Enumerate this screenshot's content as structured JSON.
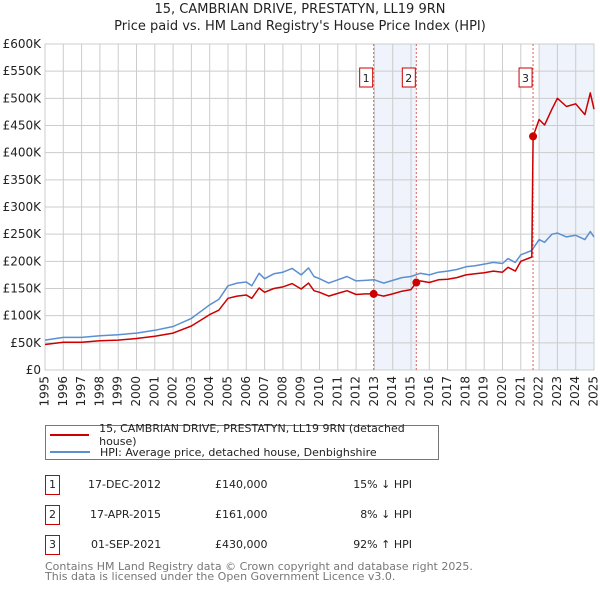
{
  "title_line1": "15, CAMBRIAN DRIVE, PRESTATYN, LL19 9RN",
  "title_line2": "Price paid vs. HM Land Registry's House Price Index (HPI)",
  "colors": {
    "property": "#cc0000",
    "hpi": "#5b8fd0",
    "shade": "#eef3fc",
    "grid": "#cccccc"
  },
  "chart_data": {
    "type": "line",
    "title": "15, CAMBRIAN DRIVE, PRESTATYN, LL19 9RN - Price paid vs. HM Land Registry's House Price Index (HPI)",
    "xlim": [
      1995,
      2025
    ],
    "ylim": [
      0,
      600000
    ],
    "x_ticks": [
      "1995",
      "1996",
      "1997",
      "1998",
      "1999",
      "2000",
      "2001",
      "2002",
      "2003",
      "2004",
      "2005",
      "2006",
      "2007",
      "2008",
      "2009",
      "2010",
      "2011",
      "2012",
      "2013",
      "2014",
      "2015",
      "2016",
      "2017",
      "2018",
      "2019",
      "2020",
      "2021",
      "2022",
      "2023",
      "2024",
      "2025"
    ],
    "y_ticks": [
      {
        "v": 0,
        "label": "£0"
      },
      {
        "v": 50000,
        "label": "£50K"
      },
      {
        "v": 100000,
        "label": "£100K"
      },
      {
        "v": 150000,
        "label": "£150K"
      },
      {
        "v": 200000,
        "label": "£200K"
      },
      {
        "v": 250000,
        "label": "£250K"
      },
      {
        "v": 300000,
        "label": "£300K"
      },
      {
        "v": 350000,
        "label": "£350K"
      },
      {
        "v": 400000,
        "label": "£400K"
      },
      {
        "v": 450000,
        "label": "£450K"
      },
      {
        "v": 500000,
        "label": "£500K"
      },
      {
        "v": 550000,
        "label": "£550K"
      },
      {
        "v": 600000,
        "label": "£600K"
      }
    ],
    "grid": true,
    "shaded_ranges": [
      [
        2012.96,
        2015.29
      ],
      [
        2022.0,
        2025
      ]
    ],
    "series": [
      {
        "name": "15, CAMBRIAN DRIVE, PRESTATYN, LL19 9RN (detached house)",
        "key": "property",
        "x": [
          1995,
          1996,
          1997,
          1998,
          1999,
          2000,
          2001,
          2002,
          2003,
          2004,
          2004.5,
          2005,
          2005.5,
          2006,
          2006.3,
          2006.7,
          2007,
          2007.5,
          2008,
          2008.5,
          2009,
          2009.4,
          2009.7,
          2010,
          2010.5,
          2011,
          2011.5,
          2012,
          2012.5,
          2012.96,
          2013.5,
          2014,
          2014.5,
          2015,
          2015.29,
          2015.5,
          2016,
          2016.5,
          2017,
          2017.5,
          2018,
          2018.5,
          2019,
          2019.5,
          2020,
          2020.3,
          2020.7,
          2021,
          2021.6,
          2021.67,
          2022,
          2022.3,
          2022.7,
          2023,
          2023.5,
          2024,
          2024.5,
          2024.8,
          2025
        ],
        "y": [
          47000,
          51000,
          51000,
          54000,
          55000,
          58000,
          62000,
          68000,
          81000,
          102000,
          110000,
          132000,
          136000,
          138000,
          132000,
          151000,
          143000,
          150000,
          153000,
          159000,
          149000,
          160000,
          146000,
          143000,
          136000,
          141000,
          146000,
          139000,
          140000,
          140000,
          136000,
          140000,
          145000,
          148000,
          161000,
          164000,
          161000,
          166000,
          167000,
          170000,
          175000,
          177000,
          179000,
          182000,
          180000,
          189000,
          182000,
          200000,
          208000,
          430000,
          461000,
          451000,
          480000,
          500000,
          485000,
          490000,
          470000,
          510000,
          480000
        ]
      },
      {
        "name": "HPI: Average price, detached house, Denbighshire",
        "key": "hpi",
        "x": [
          1995,
          1996,
          1997,
          1998,
          1999,
          2000,
          2001,
          2002,
          2003,
          2004,
          2004.5,
          2005,
          2005.5,
          2006,
          2006.3,
          2006.7,
          2007,
          2007.5,
          2008,
          2008.5,
          2009,
          2009.4,
          2009.7,
          2010,
          2010.5,
          2011,
          2011.5,
          2012,
          2012.5,
          2013,
          2013.5,
          2014,
          2014.5,
          2015,
          2015.5,
          2016,
          2016.5,
          2017,
          2017.5,
          2018,
          2018.5,
          2019,
          2019.5,
          2020,
          2020.3,
          2020.7,
          2021,
          2021.6,
          2022,
          2022.3,
          2022.7,
          2023,
          2023.5,
          2024,
          2024.5,
          2024.8,
          2025
        ],
        "y": [
          55000,
          60000,
          60000,
          63000,
          65000,
          68000,
          73000,
          80000,
          95000,
          120000,
          130000,
          155000,
          160000,
          162000,
          155000,
          178000,
          168000,
          177000,
          180000,
          187000,
          175000,
          188000,
          172000,
          168000,
          160000,
          166000,
          172000,
          164000,
          165000,
          166000,
          160000,
          165000,
          170000,
          172000,
          178000,
          175000,
          180000,
          182000,
          185000,
          190000,
          192000,
          195000,
          198000,
          196000,
          205000,
          198000,
          212000,
          220000,
          240000,
          235000,
          250000,
          252000,
          245000,
          248000,
          240000,
          255000,
          245000
        ]
      }
    ],
    "sales": [
      {
        "n": "1",
        "x": 2012.96,
        "y": 140000
      },
      {
        "n": "2",
        "x": 2015.29,
        "y": 161000
      },
      {
        "n": "3",
        "x": 2021.67,
        "y": 430000
      }
    ]
  },
  "legend": {
    "property": "15, CAMBRIAN DRIVE, PRESTATYN, LL19 9RN (detached house)",
    "hpi": "HPI: Average price, detached house, Denbighshire"
  },
  "transactions": [
    {
      "n": "1",
      "date": "17-DEC-2012",
      "price": "£140,000",
      "diff": "15% ↓ HPI"
    },
    {
      "n": "2",
      "date": "17-APR-2015",
      "price": "£161,000",
      "diff": "8% ↓ HPI"
    },
    {
      "n": "3",
      "date": "01-SEP-2021",
      "price": "£430,000",
      "diff": "92% ↑ HPI"
    }
  ],
  "footer_line1": "Contains HM Land Registry data © Crown copyright and database right 2025.",
  "footer_line2": "This data is licensed under the Open Government Licence v3.0."
}
